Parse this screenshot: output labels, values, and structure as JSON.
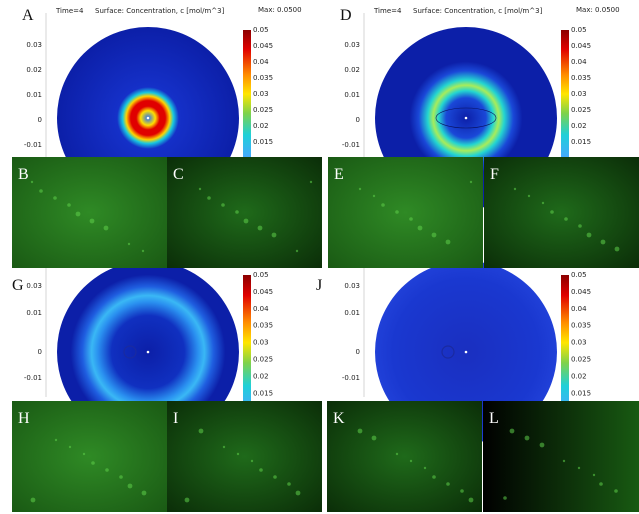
{
  "panels": [
    {
      "letter": "A",
      "time": "Time=4",
      "surface": "Surface: Concentration, c [mol/m^3]",
      "max": "Max: 0.0500",
      "yticks": [
        "0.03",
        "0.02",
        "0.01",
        "0",
        "-0.01"
      ],
      "colorbar": [
        "0.05",
        "0.045",
        "0.04",
        "0.035",
        "0.03",
        "0.025",
        "0.02",
        "0.015"
      ]
    },
    {
      "letter": "D",
      "time": "Time=4",
      "surface": "Surface: Concentration, c [mol/m^3]",
      "max": "Max: 0.0500",
      "yticks": [
        "0.03",
        "0.02",
        "0.01",
        "0",
        "-0.01"
      ],
      "colorbar": [
        "0.05",
        "0.045",
        "0.04",
        "0.035",
        "0.03",
        "0.025",
        "0.02",
        "0.015"
      ]
    },
    {
      "letter": "G",
      "yticks": [
        "0.03",
        "0.01",
        "0",
        "-0.01"
      ],
      "colorbar": [
        "0.05",
        "0.045",
        "0.04",
        "0.035",
        "0.03",
        "0.025",
        "0.02",
        "0.015"
      ]
    },
    {
      "letter": "J",
      "yticks": [
        "0.03",
        "0.01",
        "0",
        "-0.01"
      ],
      "colorbar": [
        "0.05",
        "0.045",
        "0.04",
        "0.035",
        "0.03",
        "0.025",
        "0.02",
        "0.015"
      ]
    }
  ],
  "images": [
    {
      "letter": "B"
    },
    {
      "letter": "C"
    },
    {
      "letter": "E"
    },
    {
      "letter": "F"
    },
    {
      "letter": "H"
    },
    {
      "letter": "I"
    },
    {
      "letter": "K"
    },
    {
      "letter": "L"
    }
  ]
}
